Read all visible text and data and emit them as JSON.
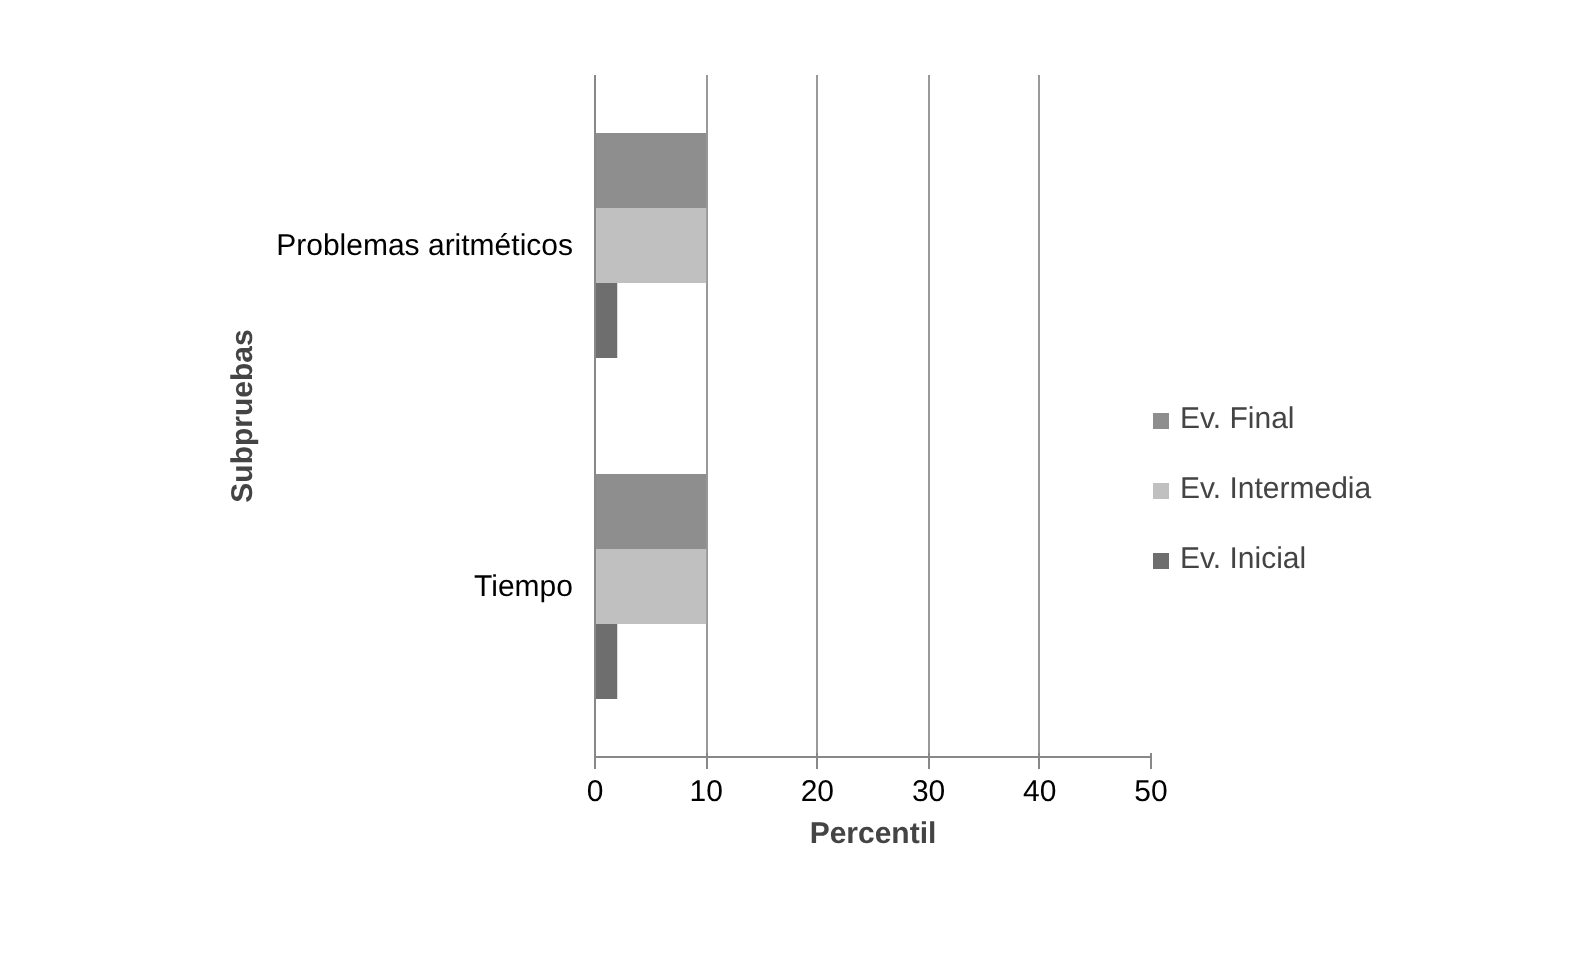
{
  "chart_data": {
    "type": "bar",
    "orientation": "horizontal",
    "xlabel": "Percentil",
    "ylabel": "Subpruebas",
    "categories": [
      "Problemas aritméticos",
      "Tiempo"
    ],
    "series": [
      {
        "name": "Ev. Inicial",
        "color": "#6e6e6e",
        "values": [
          2,
          2
        ]
      },
      {
        "name": "Ev. Intermedia",
        "color": "#c0c0c0",
        "values": [
          10,
          10
        ]
      },
      {
        "name": "Ev. Final",
        "color": "#8e8e8e",
        "values": [
          10,
          10
        ]
      }
    ],
    "xlim": [
      0,
      50
    ],
    "xticks": [
      0,
      10,
      20,
      30,
      40,
      50
    ],
    "grid": "x",
    "legend": "right"
  }
}
